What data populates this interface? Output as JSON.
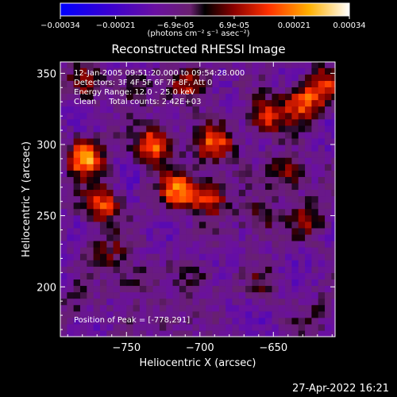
{
  "chart_data": {
    "type": "heatmap",
    "title": "Reconstructed RHESSI Image",
    "xlabel": "Heliocentric X (arcsec)",
    "ylabel": "Heliocentric Y (arcsec)",
    "xlim": [
      -795,
      -608
    ],
    "ylim": [
      165,
      358
    ],
    "xticks": [
      -750,
      -700,
      -650
    ],
    "yticks": [
      200,
      250,
      300,
      350
    ],
    "colorbar": {
      "ticks": [
        "-0.00034",
        "-0.00021",
        "-6.9e-05",
        "6.9e-05",
        "0.00021",
        "0.00034"
      ],
      "range": [
        -0.00034,
        0.00034
      ],
      "label": "(photons cm⁻² s⁻¹ asec⁻²)"
    },
    "annotations": {
      "time_range": "12-Jan-2005 09:51:20.000 to 09:54:28.000",
      "detectors": "Detectors: 3F 4F 5F 6F 7F 8F, Att 0",
      "energy_range": "Energy Range: 12.0 - 25.0 keV",
      "clean_counts": "Clean     Total counts: 2.42E+03",
      "peak_position": "Position of Peak = [-778,291]"
    },
    "bright_sources": [
      {
        "x": -778,
        "y": 291,
        "value": 0.00034
      },
      {
        "x": -730,
        "y": 300,
        "value": 0.0003
      },
      {
        "x": -715,
        "y": 268,
        "value": 0.00028
      },
      {
        "x": -768,
        "y": 258,
        "value": 0.00027
      },
      {
        "x": -690,
        "y": 300,
        "value": 0.00026
      },
      {
        "x": -630,
        "y": 330,
        "value": 0.00025
      },
      {
        "x": -655,
        "y": 320,
        "value": 0.00024
      },
      {
        "x": -693,
        "y": 263,
        "value": 0.00022
      },
      {
        "x": -705,
        "y": 343,
        "value": 0.0002
      },
      {
        "x": -615,
        "y": 342,
        "value": 0.0002
      },
      {
        "x": -640,
        "y": 280,
        "value": 0.00018
      },
      {
        "x": -625,
        "y": 248,
        "value": 0.00016
      },
      {
        "x": -660,
        "y": 248,
        "value": 0.00015
      },
      {
        "x": -780,
        "y": 345,
        "value": 0.00012
      },
      {
        "x": -745,
        "y": 340,
        "value": 0.00012
      },
      {
        "x": -762,
        "y": 225,
        "value": 0.00013
      },
      {
        "x": -745,
        "y": 205,
        "value": 0.00011
      },
      {
        "x": -700,
        "y": 205,
        "value": 0.0001
      },
      {
        "x": -655,
        "y": 205,
        "value": 9e-05
      },
      {
        "x": -620,
        "y": 180,
        "value": 8e-05
      },
      {
        "x": -720,
        "y": 175,
        "value": 9e-05
      },
      {
        "x": -785,
        "y": 188,
        "value": 7e-05
      }
    ]
  },
  "footer": {
    "timestamp": "27-Apr-2022 16:21"
  }
}
